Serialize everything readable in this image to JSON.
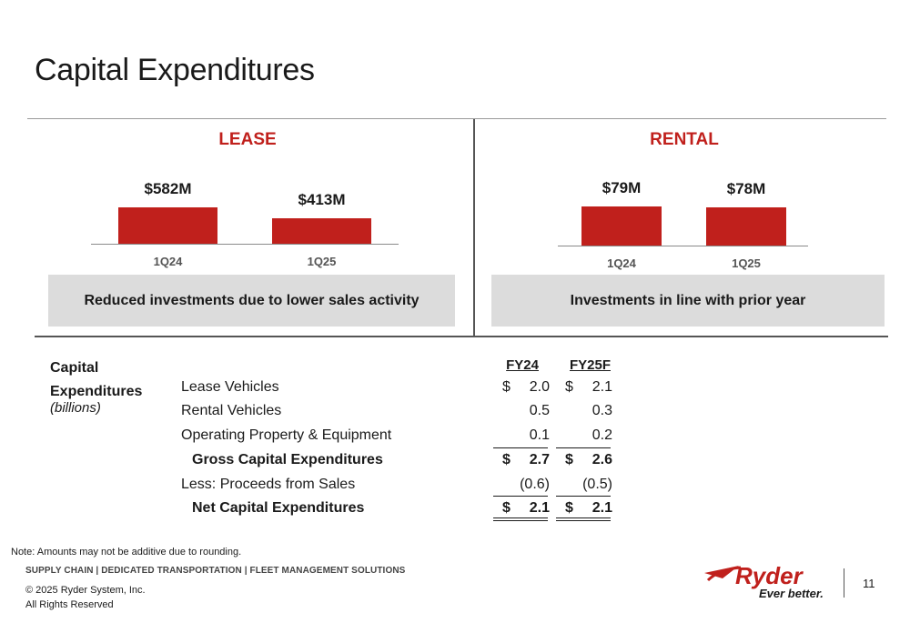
{
  "title": "Capital Expenditures",
  "chart_data": [
    {
      "type": "bar",
      "title": "LEASE",
      "categories": [
        "1Q24",
        "1Q25"
      ],
      "values": [
        582,
        413
      ],
      "value_labels": [
        "$582M",
        "$413M"
      ],
      "callout": "Reduced investments due to lower sales activity",
      "color": "#c0201c"
    },
    {
      "type": "bar",
      "title": "RENTAL",
      "categories": [
        "1Q24",
        "1Q25"
      ],
      "values": [
        79,
        78
      ],
      "value_labels": [
        "$79M",
        "$78M"
      ],
      "callout": "Investments in line with prior year",
      "color": "#c0201c"
    },
    {
      "type": "table",
      "label_line1": "Capital",
      "label_line2": "Expenditures",
      "unit": "(billions)",
      "columns": [
        "FY24",
        "FY25F"
      ],
      "rows": [
        {
          "label": "Lease Vehicles",
          "values": [
            "2.0",
            "2.1"
          ],
          "dollar": true
        },
        {
          "label": "Rental Vehicles",
          "values": [
            "0.5",
            "0.3"
          ]
        },
        {
          "label": "Operating Property & Equipment",
          "values": [
            "0.1",
            "0.2"
          ]
        },
        {
          "label": "Gross Capital Expenditures",
          "values": [
            "2.7",
            "2.6"
          ],
          "dollar": true
        },
        {
          "label": "Less: Proceeds from Sales",
          "values": [
            "(0.6)",
            "(0.5)"
          ]
        },
        {
          "label": "Net Capital Expenditures",
          "values": [
            "2.1",
            "2.1"
          ],
          "dollar": true
        }
      ],
      "currency_symbol": "$"
    }
  ],
  "footer": {
    "note": "Note: Amounts may not be additive due to rounding.",
    "tagline": "SUPPLY CHAIN | DEDICATED TRANSPORTATION | FLEET MANAGEMENT SOLUTIONS",
    "copyright": "© 2025 Ryder System, Inc.",
    "rights": "All Rights Reserved",
    "logo_brand": "Ryder",
    "logo_slogan": "Ever better.",
    "page_number": "11"
  }
}
